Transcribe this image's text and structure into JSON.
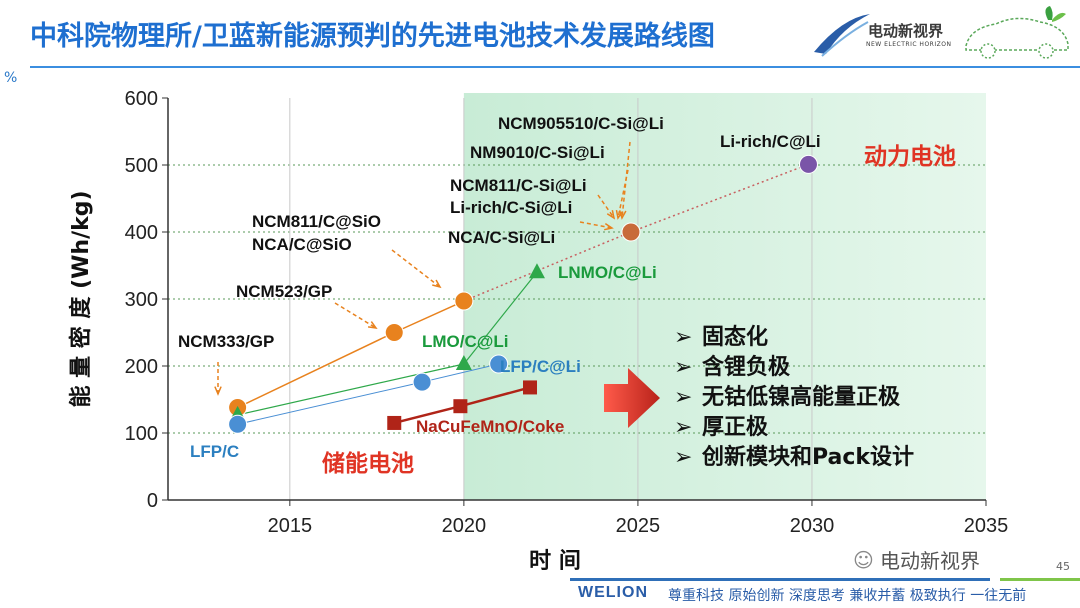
{
  "header": {
    "title": "中科院物理所/卫蓝新能源预判的先进电池技术发展路线图",
    "logo_text": "电动新视界",
    "logo_sub": "NEW ELECTRIC HORIZON",
    "corner_mark": "%"
  },
  "chart_data": {
    "type": "scatter",
    "xlabel": "时    间",
    "ylabel": "能 量 密 度  (Wh/kg)",
    "xlim": [
      2011.5,
      2035
    ],
    "ylim": [
      0,
      600
    ],
    "x_ticks": [
      "2015",
      "2020",
      "2025",
      "2030",
      "2035"
    ],
    "y_ticks": [
      "0",
      "100",
      "200",
      "300",
      "400",
      "500",
      "600"
    ],
    "highlight_region": {
      "x_from": 2020,
      "x_to": 2035
    },
    "series": [
      {
        "name": "动力电池",
        "color": "#e8821e",
        "marker": "circle",
        "points": [
          {
            "x": 2013.5,
            "y": 138
          },
          {
            "x": 2018,
            "y": 250
          },
          {
            "x": 2020,
            "y": 297
          },
          {
            "x": 2024.8,
            "y": 400
          },
          {
            "x": 2029.9,
            "y": 501
          }
        ]
      },
      {
        "name": "",
        "color": "#2ea84a",
        "marker": "triangle",
        "points": [
          {
            "x": 2013.5,
            "y": 127
          },
          {
            "x": 2020,
            "y": 203
          },
          {
            "x": 2022.1,
            "y": 340
          }
        ]
      },
      {
        "name": "",
        "color": "#4a8fd4",
        "marker": "circle",
        "points": [
          {
            "x": 2013.5,
            "y": 113
          },
          {
            "x": 2018.8,
            "y": 176
          },
          {
            "x": 2021,
            "y": 203
          }
        ]
      },
      {
        "name": "储能电池",
        "color": "#b02418",
        "marker": "square",
        "points": [
          {
            "x": 2018,
            "y": 115
          },
          {
            "x": 2019.9,
            "y": 140
          },
          {
            "x": 2021.9,
            "y": 168
          }
        ]
      }
    ],
    "legend_labels": {
      "power": "动力电池",
      "storage": "储能电池"
    },
    "annotations": {
      "ncm333": "NCM333/GP",
      "ncm523": "NCM523/GP",
      "ncm811_sio": "NCM811/C@SiO",
      "nca_sio": "NCA/C@SiO",
      "ncm905510": "NCM905510/C-Si@Li",
      "nm9010": "NM9010/C-Si@Li",
      "ncm811_csi": "NCM811/C-Si@Li",
      "lirich_csi": "Li-rich/C-Si@Li",
      "nca_csi": "NCA/C-Si@Li",
      "lirich_c": "Li-rich/C@Li",
      "lnmo": "LNMO/C@Li",
      "lmo": "LMO/C@Li",
      "lfp_c_li": "LFP/C@Li",
      "lfp_c": "LFP/C",
      "nacufemno": "NaCuFeMnO/Coke"
    },
    "bullets": [
      "固态化",
      "含锂负极",
      "无钴低镍高能量正极",
      "厚正极",
      "创新模块和Pack设计"
    ],
    "bullet_marker": "➢"
  },
  "footer": {
    "logo": "WELION",
    "slogan": "尊重科技  原始创新  深度思考  兼收并蓄  极致执行  一往无前",
    "page_number": "45",
    "watermark": "电动新视界"
  },
  "colors": {
    "title_blue": "#1e6fd0",
    "highlight_green": "#d8f2e2",
    "arrow_red": "#e83a2a"
  }
}
